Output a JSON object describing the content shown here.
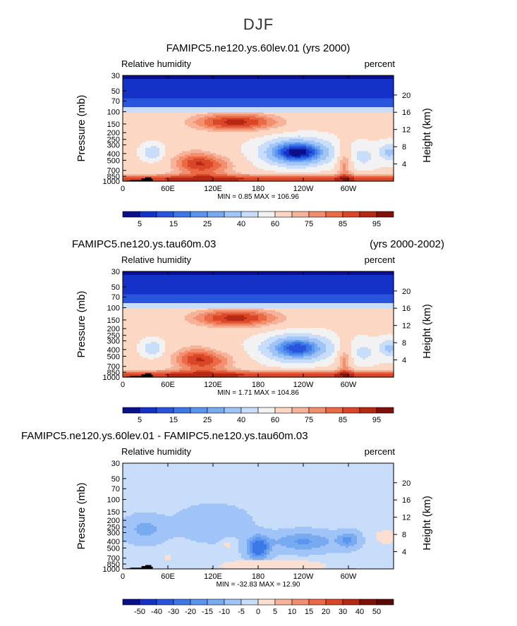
{
  "page": {
    "title": "DJF"
  },
  "chart_data": [
    {
      "type": "heatmap",
      "id": "p1",
      "title_left": "FAMIPC5.ne120.ys.60lev.01 (yrs 2000)",
      "title_right": "",
      "title_align": "center",
      "variable": "Relative humidity",
      "units": "percent",
      "ylabel": "Pressure (mb)",
      "ylabel_right": "Height (km)",
      "x_ticks": [
        "0",
        "60E",
        "120E",
        "180",
        "120W",
        "60W"
      ],
      "x_tick_values": [
        0,
        60,
        120,
        180,
        240,
        300
      ],
      "xlim": [
        0,
        360
      ],
      "y_ticks": [
        "30",
        "50",
        "70",
        "100",
        "150",
        "200",
        "250",
        "300",
        "400",
        "500",
        "700",
        "850",
        "1000"
      ],
      "y_tick_values": [
        30,
        50,
        70,
        100,
        150,
        200,
        250,
        300,
        400,
        500,
        700,
        850,
        1000
      ],
      "ylim": [
        1000,
        30
      ],
      "height_ticks": [
        "20",
        "16",
        "12",
        "8",
        "4"
      ],
      "height_tick_values": [
        20,
        16,
        12,
        8,
        4
      ],
      "stats": "MIN =     0.85   MAX =  106.96",
      "min": 0.85,
      "max": 106.96,
      "colorbar_labels": [
        "5",
        "15",
        "25",
        "40",
        "60",
        "75",
        "85",
        "95"
      ],
      "colorbar_levels": [
        5,
        10,
        15,
        20,
        25,
        30,
        40,
        50,
        60,
        70,
        75,
        80,
        85,
        90,
        95
      ],
      "colorbar_colors": [
        "#0a0f8c",
        "#1432c8",
        "#2855dc",
        "#3c78e6",
        "#5a96f0",
        "#78aaf0",
        "#a0c4f8",
        "#c8ddfa",
        "#f2f2f2",
        "#fbd7c4",
        "#f7b39a",
        "#f28f6e",
        "#eb6a46",
        "#d94628",
        "#b42814",
        "#801008"
      ],
      "regions": [
        {
          "feature": "dry mid-troposphere",
          "lon_min": 150,
          "lon_max": 290,
          "p_min": 250,
          "p_max": 600,
          "value": 20
        },
        {
          "feature": "moist boundary layer",
          "lon_min": 0,
          "lon_max": 360,
          "p_min": 850,
          "p_max": 1000,
          "value": 85
        },
        {
          "feature": "moist upper troposphere",
          "lon_min": 0,
          "lon_max": 360,
          "p_min": 100,
          "p_max": 180,
          "value": 80
        },
        {
          "feature": "dry stratosphere",
          "lon_min": 0,
          "lon_max": 360,
          "p_min": 30,
          "p_max": 70,
          "value": 5
        }
      ]
    },
    {
      "type": "heatmap",
      "id": "p2",
      "title_left": "FAMIPC5.ne120.ys.tau60m.03",
      "title_right": "(yrs 2000-2002)",
      "title_align": "split",
      "variable": "Relative humidity",
      "units": "percent",
      "ylabel": "Pressure (mb)",
      "ylabel_right": "Height (km)",
      "x_ticks": [
        "0",
        "60E",
        "120E",
        "180",
        "120W",
        "60W"
      ],
      "x_tick_values": [
        0,
        60,
        120,
        180,
        240,
        300
      ],
      "xlim": [
        0,
        360
      ],
      "y_ticks": [
        "30",
        "50",
        "70",
        "100",
        "150",
        "200",
        "250",
        "300",
        "400",
        "500",
        "700",
        "850",
        "1000"
      ],
      "y_tick_values": [
        30,
        50,
        70,
        100,
        150,
        200,
        250,
        300,
        400,
        500,
        700,
        850,
        1000
      ],
      "ylim": [
        1000,
        30
      ],
      "height_ticks": [
        "20",
        "16",
        "12",
        "8",
        "4"
      ],
      "height_tick_values": [
        20,
        16,
        12,
        8,
        4
      ],
      "stats": "MIN =     1.71   MAX =  104.86",
      "min": 1.71,
      "max": 104.86,
      "colorbar_labels": [
        "5",
        "15",
        "25",
        "40",
        "60",
        "75",
        "85",
        "95"
      ],
      "colorbar_levels": [
        5,
        10,
        15,
        20,
        25,
        30,
        40,
        50,
        60,
        70,
        75,
        80,
        85,
        90,
        95
      ],
      "colorbar_colors": [
        "#0a0f8c",
        "#1432c8",
        "#2855dc",
        "#3c78e6",
        "#5a96f0",
        "#78aaf0",
        "#a0c4f8",
        "#c8ddfa",
        "#f2f2f2",
        "#fbd7c4",
        "#f7b39a",
        "#f28f6e",
        "#eb6a46",
        "#d94628",
        "#b42814",
        "#801008"
      ],
      "regions": [
        {
          "feature": "dry mid-troposphere",
          "lon_min": 170,
          "lon_max": 290,
          "p_min": 300,
          "p_max": 550,
          "value": 30
        },
        {
          "feature": "moist boundary layer",
          "lon_min": 0,
          "lon_max": 360,
          "p_min": 850,
          "p_max": 1000,
          "value": 85
        },
        {
          "feature": "moist upper troposphere",
          "lon_min": 0,
          "lon_max": 360,
          "p_min": 100,
          "p_max": 180,
          "value": 85
        },
        {
          "feature": "dry stratosphere",
          "lon_min": 0,
          "lon_max": 360,
          "p_min": 30,
          "p_max": 70,
          "value": 5
        }
      ]
    },
    {
      "type": "heatmap",
      "id": "p3",
      "title_left": "FAMIPC5.ne120.ys.60lev.01 - FAMIPC5.ne120.ys.tau60m.03",
      "title_right": "",
      "title_align": "left",
      "variable": "Relative humidity",
      "units": "percent",
      "ylabel": "Pressure (mb)",
      "ylabel_right": "Height (km)",
      "x_ticks": [
        "0",
        "60E",
        "120E",
        "180",
        "120W",
        "60W"
      ],
      "x_tick_values": [
        0,
        60,
        120,
        180,
        240,
        300
      ],
      "xlim": [
        0,
        360
      ],
      "y_ticks": [
        "30",
        "50",
        "70",
        "100",
        "150",
        "200",
        "250",
        "300",
        "400",
        "500",
        "700",
        "850",
        "1000"
      ],
      "y_tick_values": [
        30,
        50,
        70,
        100,
        150,
        200,
        250,
        300,
        400,
        500,
        700,
        850,
        1000
      ],
      "ylim": [
        1000,
        30
      ],
      "height_ticks": [
        "20",
        "16",
        "12",
        "8",
        "4"
      ],
      "height_tick_values": [
        20,
        16,
        12,
        8,
        4
      ],
      "stats": "MIN =   -32.83   MAX =   12.90",
      "min": -32.83,
      "max": 12.9,
      "colorbar_labels": [
        "-50",
        "-40",
        "-30",
        "-20",
        "-15",
        "-10",
        "-5",
        "0",
        "5",
        "10",
        "15",
        "20",
        "30",
        "40",
        "50"
      ],
      "colorbar_levels": [
        -50,
        -40,
        -30,
        -20,
        -15,
        -10,
        -5,
        0,
        5,
        10,
        15,
        20,
        30,
        40,
        50
      ],
      "colorbar_colors": [
        "#0a0f8c",
        "#1432c8",
        "#2855dc",
        "#3c78e6",
        "#5a96f0",
        "#78aaf0",
        "#a0c4f8",
        "#c8ddfa",
        "#fbe0d2",
        "#f7b39a",
        "#f28f6e",
        "#eb6a46",
        "#d94628",
        "#b42814",
        "#801008",
        "#5a0804"
      ],
      "regions": [
        {
          "feature": "negative anomaly near dateline",
          "lon_min": 150,
          "lon_max": 200,
          "p_min": 300,
          "p_max": 800,
          "value": -25
        },
        {
          "feature": "background",
          "lon_min": 0,
          "lon_max": 360,
          "p_min": 30,
          "p_max": 1000,
          "value": -3
        },
        {
          "feature": "positive anomaly",
          "lon_min": 330,
          "lon_max": 360,
          "p_min": 250,
          "p_max": 450,
          "value": 8
        }
      ]
    }
  ]
}
